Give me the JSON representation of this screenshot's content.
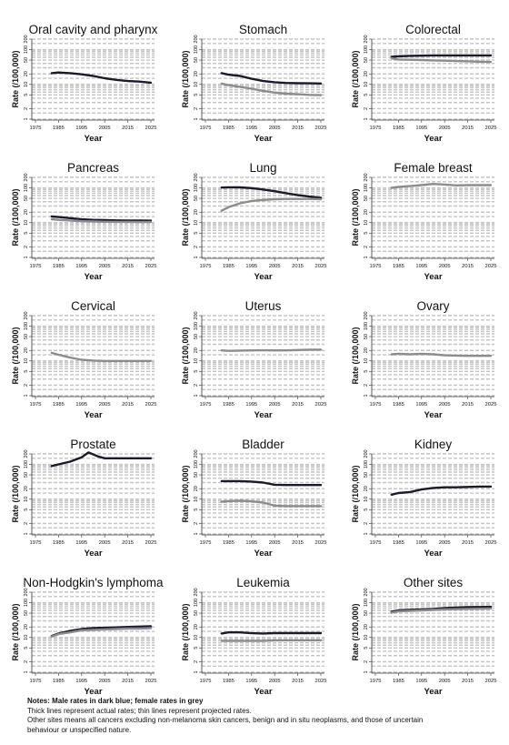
{
  "chart_data": [
    {
      "type": "line",
      "title": "Oral cavity and pharynx",
      "xlabel": "Year",
      "ylabel": "Rate (/100,000)",
      "xticks": [
        "1975",
        "1985",
        "1995",
        "2005",
        "2015",
        "2025"
      ],
      "yticks": [
        "1",
        "2",
        "5",
        "10",
        "20",
        "50",
        "100",
        "200"
      ],
      "ylog": true,
      "series": [
        {
          "sex": "male",
          "color": "#1a1a2e",
          "x": [
            1982,
            1985,
            1990,
            1995,
            2000,
            2005,
            2010,
            2015,
            2020,
            2025
          ],
          "y": [
            21,
            22,
            21,
            19.5,
            17.5,
            15,
            13.5,
            12.5,
            12,
            11.2
          ]
        }
      ]
    },
    {
      "type": "line",
      "title": "Stomach",
      "xlabel": "Year",
      "ylabel": "Rate (/100,000)",
      "xticks": [
        "1975",
        "1985",
        "1995",
        "2005",
        "2015",
        "2025"
      ],
      "yticks": [
        "1",
        "2",
        "5",
        "10",
        "20",
        "50",
        "100",
        "200"
      ],
      "ylog": true,
      "series": [
        {
          "sex": "male",
          "color": "#1a1a2e",
          "x": [
            1982,
            1985,
            1990,
            1995,
            2000,
            2005,
            2010,
            2015,
            2020,
            2025
          ],
          "y": [
            21,
            19,
            17.5,
            14.5,
            12.5,
            11.5,
            11,
            10.8,
            10.7,
            10.6
          ]
        },
        {
          "sex": "female",
          "color": "#8c8c8c",
          "x": [
            1982,
            1985,
            1990,
            1995,
            2000,
            2005,
            2010,
            2015,
            2020,
            2025
          ],
          "y": [
            10.5,
            9.5,
            8.5,
            7.5,
            6.5,
            5.8,
            5.4,
            5.2,
            5,
            4.9
          ]
        }
      ]
    },
    {
      "type": "line",
      "title": "Colorectal",
      "xlabel": "Year",
      "ylabel": "Rate (/100,000)",
      "xticks": [
        "1975",
        "1985",
        "1995",
        "2005",
        "2015",
        "2025"
      ],
      "yticks": [
        "1",
        "2",
        "5",
        "10",
        "20",
        "50",
        "100",
        "200"
      ],
      "ylog": true,
      "series": [
        {
          "sex": "male",
          "color": "#1a1a2e",
          "x": [
            1982,
            1985,
            1990,
            1995,
            2000,
            2005,
            2010,
            2015,
            2020,
            2025
          ],
          "y": [
            62,
            64,
            66,
            67,
            68,
            68,
            68,
            68,
            68,
            68
          ]
        },
        {
          "sex": "female",
          "color": "#8c8c8c",
          "x": [
            1982,
            1985,
            1990,
            1995,
            2000,
            2005,
            2010,
            2015,
            2020,
            2025
          ],
          "y": [
            56,
            52,
            51,
            50,
            49,
            48,
            47,
            46,
            45,
            44
          ]
        }
      ]
    },
    {
      "type": "line",
      "title": "Pancreas",
      "xlabel": "Year",
      "ylabel": "Rate (/100,000)",
      "xticks": [
        "1975",
        "1985",
        "1995",
        "2005",
        "2015",
        "2025"
      ],
      "yticks": [
        "1",
        "2",
        "5",
        "10",
        "20",
        "50",
        "100",
        "200"
      ],
      "ylog": true,
      "series": [
        {
          "sex": "male",
          "color": "#1a1a2e",
          "x": [
            1982,
            1985,
            1990,
            1995,
            2000,
            2005,
            2010,
            2015,
            2020,
            2025
          ],
          "y": [
            15,
            14.5,
            13.5,
            12.5,
            12,
            11.8,
            11.6,
            11.5,
            11.5,
            11.4
          ]
        },
        {
          "sex": "female",
          "color": "#8c8c8c",
          "x": [
            1982,
            1985,
            1990,
            1995,
            2000,
            2005,
            2010,
            2015,
            2020,
            2025
          ],
          "y": [
            12.5,
            12,
            11.5,
            11,
            10.8,
            10.6,
            10.5,
            10.5,
            10.4,
            10.4
          ]
        }
      ]
    },
    {
      "type": "line",
      "title": "Lung",
      "xlabel": "Year",
      "ylabel": "Rate (/100,000)",
      "xticks": [
        "1975",
        "1985",
        "1995",
        "2005",
        "2015",
        "2025"
      ],
      "yticks": [
        "1",
        "2",
        "5",
        "10",
        "20",
        "50",
        "100",
        "200"
      ],
      "ylog": true,
      "series": [
        {
          "sex": "male",
          "color": "#1a1a2e",
          "x": [
            1982,
            1985,
            1990,
            1995,
            2000,
            2005,
            2010,
            2015,
            2020,
            2025
          ],
          "y": [
            102,
            104,
            103,
            98,
            90,
            80,
            70,
            62,
            56,
            52
          ]
        },
        {
          "sex": "female",
          "color": "#8c8c8c",
          "x": [
            1982,
            1985,
            1990,
            1995,
            2000,
            2005,
            2010,
            2015,
            2020,
            2025
          ],
          "y": [
            22,
            28,
            36,
            42,
            45,
            47,
            48,
            48,
            48,
            47
          ]
        }
      ]
    },
    {
      "type": "line",
      "title": "Female breast",
      "xlabel": "Year",
      "ylabel": "Rate (/100,000)",
      "xticks": [
        "1975",
        "1985",
        "1995",
        "2005",
        "2015",
        "2025"
      ],
      "yticks": [
        "1",
        "2",
        "5",
        "10",
        "20",
        "50",
        "100",
        "200"
      ],
      "ylog": true,
      "series": [
        {
          "sex": "female",
          "color": "#8c8c8c",
          "x": [
            1982,
            1985,
            1990,
            1995,
            2000,
            2005,
            2010,
            2015,
            2020,
            2025
          ],
          "y": [
            100,
            106,
            112,
            120,
            130,
            124,
            118,
            120,
            120,
            120
          ]
        }
      ]
    },
    {
      "type": "line",
      "title": "Cervical",
      "xlabel": "Year",
      "ylabel": "Rate (/100,000)",
      "xticks": [
        "1975",
        "1985",
        "1995",
        "2005",
        "2015",
        "2025"
      ],
      "yticks": [
        "1",
        "2",
        "5",
        "10",
        "20",
        "50",
        "100",
        "200"
      ],
      "ylog": true,
      "series": [
        {
          "sex": "female",
          "color": "#8c8c8c",
          "x": [
            1982,
            1985,
            1990,
            1995,
            2000,
            2005,
            2010,
            2015,
            2020,
            2025
          ],
          "y": [
            17,
            15,
            12.5,
            10.8,
            10.2,
            10,
            10,
            10,
            10,
            10
          ]
        }
      ]
    },
    {
      "type": "line",
      "title": "Uterus",
      "xlabel": "Year",
      "ylabel": "Rate (/100,000)",
      "xticks": [
        "1975",
        "1985",
        "1995",
        "2005",
        "2015",
        "2025"
      ],
      "yticks": [
        "1",
        "2",
        "5",
        "10",
        "20",
        "50",
        "100",
        "200"
      ],
      "ylog": true,
      "series": [
        {
          "sex": "female",
          "color": "#8c8c8c",
          "x": [
            1982,
            1985,
            1990,
            1995,
            2000,
            2005,
            2010,
            2015,
            2020,
            2025
          ],
          "y": [
            20,
            19.5,
            19.8,
            20,
            20.2,
            20,
            20,
            20.5,
            21,
            21
          ]
        }
      ]
    },
    {
      "type": "line",
      "title": "Ovary",
      "xlabel": "Year",
      "ylabel": "Rate (/100,000)",
      "xticks": [
        "1975",
        "1985",
        "1995",
        "2005",
        "2015",
        "2025"
      ],
      "yticks": [
        "1",
        "2",
        "5",
        "10",
        "20",
        "50",
        "100",
        "200"
      ],
      "ylog": true,
      "series": [
        {
          "sex": "female",
          "color": "#8c8c8c",
          "x": [
            1982,
            1985,
            1990,
            1995,
            2000,
            2005,
            2010,
            2015,
            2020,
            2025
          ],
          "y": [
            15.5,
            16,
            15.5,
            16,
            15.5,
            14.5,
            14.2,
            14,
            14,
            14
          ]
        }
      ]
    },
    {
      "type": "line",
      "title": "Prostate",
      "xlabel": "Year",
      "ylabel": "Rate (/100,000)",
      "xticks": [
        "1975",
        "1985",
        "1995",
        "2005",
        "2015",
        "2025"
      ],
      "yticks": [
        "1",
        "2",
        "5",
        "10",
        "20",
        "50",
        "100",
        "200"
      ],
      "ylog": true,
      "series": [
        {
          "sex": "male",
          "color": "#1a1a2e",
          "x": [
            1982,
            1985,
            1990,
            1995,
            1998,
            2002,
            2005,
            2010,
            2015,
            2020,
            2025
          ],
          "y": [
            90,
            100,
            120,
            160,
            220,
            170,
            150,
            150,
            150,
            150,
            150
          ]
        }
      ]
    },
    {
      "type": "line",
      "title": "Bladder",
      "xlabel": "Year",
      "ylabel": "Rate (/100,000)",
      "xticks": [
        "1975",
        "1985",
        "1995",
        "2005",
        "2015",
        "2025"
      ],
      "yticks": [
        "1",
        "2",
        "5",
        "10",
        "20",
        "50",
        "100",
        "200"
      ],
      "ylog": true,
      "series": [
        {
          "sex": "male",
          "color": "#1a1a2e",
          "x": [
            1982,
            1985,
            1990,
            1995,
            2000,
            2005,
            2010,
            2015,
            2020,
            2025
          ],
          "y": [
            33,
            33,
            33,
            32,
            30,
            26,
            25.5,
            25.5,
            25.5,
            25.5
          ]
        },
        {
          "sex": "female",
          "color": "#8c8c8c",
          "x": [
            1982,
            1985,
            1990,
            1995,
            2000,
            2005,
            2010,
            2015,
            2020,
            2025
          ],
          "y": [
            8.5,
            8.8,
            9,
            8.7,
            8,
            6.5,
            6.3,
            6.3,
            6.3,
            6.3
          ]
        }
      ]
    },
    {
      "type": "line",
      "title": "Kidney",
      "xlabel": "Year",
      "ylabel": "Rate (/100,000)",
      "xticks": [
        "1975",
        "1985",
        "1995",
        "2005",
        "2015",
        "2025"
      ],
      "yticks": [
        "1",
        "2",
        "5",
        "10",
        "20",
        "50",
        "100",
        "200"
      ],
      "ylog": true,
      "series": [
        {
          "sex": "male",
          "color": "#1a1a2e",
          "x": [
            1982,
            1985,
            1990,
            1995,
            2000,
            2005,
            2010,
            2015,
            2020,
            2025
          ],
          "y": [
            13.5,
            15,
            16,
            19,
            21,
            22,
            22,
            22.5,
            23,
            23
          ]
        }
      ]
    },
    {
      "type": "line",
      "title": "Non-Hodgkin's lymphoma",
      "xlabel": "Year",
      "ylabel": "Rate (/100,000)",
      "xticks": [
        "1975",
        "1985",
        "1995",
        "2005",
        "2015",
        "2025"
      ],
      "yticks": [
        "1",
        "2",
        "5",
        "10",
        "20",
        "50",
        "100",
        "200"
      ],
      "ylog": true,
      "series": [
        {
          "sex": "male",
          "color": "#1a1a2e",
          "x": [
            1982,
            1985,
            1990,
            1995,
            2000,
            2005,
            2010,
            2015,
            2020,
            2025
          ],
          "y": [
            11,
            13,
            15.5,
            17.5,
            18.5,
            19,
            19.5,
            20,
            20.5,
            21
          ]
        },
        {
          "sex": "female",
          "color": "#8c8c8c",
          "x": [
            1982,
            1985,
            1990,
            1995,
            2000,
            2005,
            2010,
            2015,
            2020,
            2025
          ],
          "y": [
            10.5,
            12.5,
            14,
            16,
            16.5,
            17,
            17.5,
            18,
            18,
            18.5
          ]
        }
      ]
    },
    {
      "type": "line",
      "title": "Leukemia",
      "xlabel": "Year",
      "ylabel": "Rate (/100,000)",
      "xticks": [
        "1975",
        "1985",
        "1995",
        "2005",
        "2015",
        "2025"
      ],
      "yticks": [
        "1",
        "2",
        "5",
        "10",
        "20",
        "50",
        "100",
        "200"
      ],
      "ylog": true,
      "series": [
        {
          "sex": "male",
          "color": "#1a1a2e",
          "x": [
            1982,
            1985,
            1990,
            1995,
            2000,
            2005,
            2010,
            2015,
            2020,
            2025
          ],
          "y": [
            13,
            14,
            14,
            13.2,
            13,
            13.3,
            13.3,
            13.3,
            13.3,
            13.3
          ]
        },
        {
          "sex": "female",
          "color": "#8c8c8c",
          "x": [
            1982,
            1985,
            1990,
            1995,
            2000,
            2005,
            2010,
            2015,
            2020,
            2025
          ],
          "y": [
            8,
            8,
            8,
            8,
            8,
            8.3,
            8.3,
            8.3,
            8.3,
            8.3
          ]
        }
      ]
    },
    {
      "type": "line",
      "title": "Other sites",
      "xlabel": "Year",
      "ylabel": "Rate (/100,000)",
      "xticks": [
        "1975",
        "1985",
        "1995",
        "2005",
        "2015",
        "2025"
      ],
      "yticks": [
        "1",
        "2",
        "5",
        "10",
        "20",
        "50",
        "100",
        "200"
      ],
      "ylog": true,
      "series": [
        {
          "sex": "male",
          "color": "#1a1a2e",
          "x": [
            1982,
            1985,
            1990,
            1995,
            2000,
            2005,
            2010,
            2015,
            2020,
            2025
          ],
          "y": [
            55,
            60,
            62,
            64,
            66,
            70,
            72,
            74,
            75,
            76
          ]
        },
        {
          "sex": "female",
          "color": "#8c8c8c",
          "x": [
            1982,
            1985,
            1990,
            1995,
            2000,
            2005,
            2010,
            2015,
            2020,
            2025
          ],
          "y": [
            52,
            56,
            58,
            60,
            62,
            64,
            65,
            66,
            67,
            68
          ]
        }
      ]
    }
  ],
  "notes": {
    "heading": "Notes: Male rates in dark blue; female rates in grey",
    "line2": "Thick lines represent actual rates; thin lines represent projected rates.",
    "line3": "Other sites means all cancers excluding non-melanoma skin cancers, benign and in situ neoplasms, and those of uncertain",
    "line4": "behaviour or unspecified nature."
  }
}
